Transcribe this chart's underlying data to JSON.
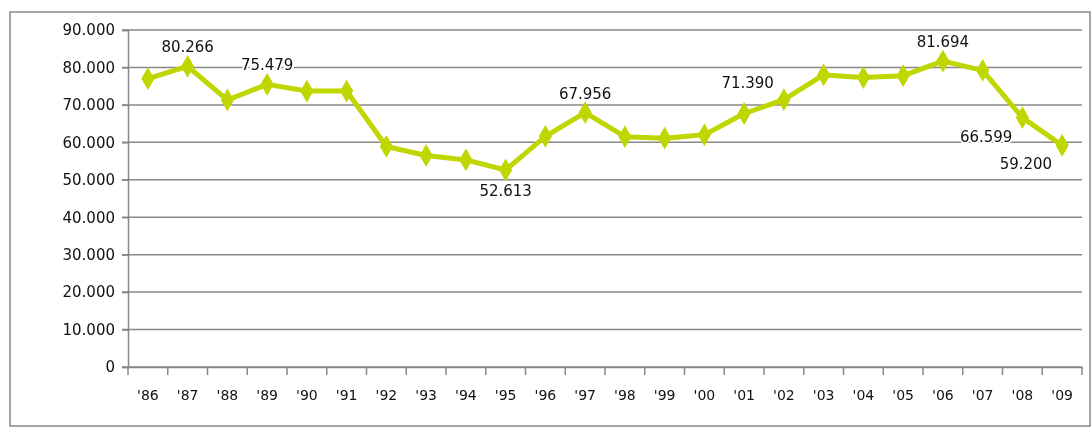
{
  "chart_data": {
    "type": "line",
    "categories": [
      "'86",
      "'87",
      "'88",
      "'89",
      "'90",
      "'91",
      "'92",
      "'93",
      "'94",
      "'95",
      "'96",
      "'97",
      "'98",
      "'99",
      "'00",
      "'01",
      "'02",
      "'03",
      "'04",
      "'05",
      "'06",
      "'07",
      "'08",
      "'09"
    ],
    "series": [
      {
        "color": "#bfd600",
        "values": [
          77000,
          80266,
          71300,
          75479,
          73700,
          73700,
          58900,
          56500,
          55300,
          52613,
          61600,
          67956,
          61500,
          61100,
          62000,
          67700,
          71390,
          78000,
          77300,
          77800,
          81694,
          79200,
          66599,
          59200
        ],
        "value_labels": [
          null,
          "80.266",
          null,
          "75.479",
          null,
          null,
          null,
          null,
          null,
          "52.613",
          null,
          "67.956",
          null,
          null,
          null,
          null,
          "71.390",
          null,
          null,
          null,
          "81.694",
          null,
          "66.599",
          "59.200"
        ]
      }
    ],
    "ylim": [
      0,
      90000
    ],
    "yticks": [
      {
        "value": 0,
        "label": "0"
      },
      {
        "value": 10000,
        "label": "10.000"
      },
      {
        "value": 20000,
        "label": "20.000"
      },
      {
        "value": 30000,
        "label": "30.000"
      },
      {
        "value": 40000,
        "label": "40.000"
      },
      {
        "value": 50000,
        "label": "50.000"
      },
      {
        "value": 60000,
        "label": "60.000"
      },
      {
        "value": 70000,
        "label": "70.000"
      },
      {
        "value": 80000,
        "label": "80.000"
      },
      {
        "value": 90000,
        "label": "90.000"
      }
    ],
    "grid": "y",
    "marker": "diamond",
    "line_style": "solid"
  }
}
